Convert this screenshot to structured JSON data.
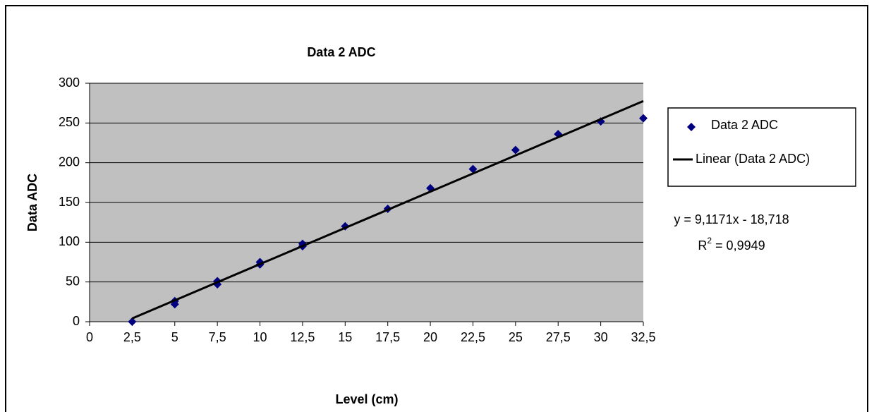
{
  "chart_data": {
    "type": "scatter",
    "title": "Data 2 ADC",
    "x_label": "Level (cm)",
    "y_label": "Data ADC",
    "xlim": [
      0,
      32.5
    ],
    "xticks": [
      0,
      {
        "value": 2.5,
        "label": "2,5"
      },
      5,
      {
        "value": 7.5,
        "label": "7,5"
      },
      10,
      {
        "value": 12.5,
        "label": "12,5"
      },
      15,
      {
        "value": 17.5,
        "label": "17,5"
      },
      20,
      {
        "value": 22.5,
        "label": "22,5"
      },
      25,
      {
        "value": 27.5,
        "label": "27,5"
      },
      30,
      {
        "value": 32.5,
        "label": "32,5"
      }
    ],
    "ylim": [
      0,
      300
    ],
    "yticks": [
      0,
      50,
      100,
      150,
      200,
      250,
      300
    ],
    "grid": true,
    "background": "#c0c0c0",
    "legend": "right",
    "series": [
      {
        "name": "Data 2 ADC",
        "color": "#000080",
        "marker": "diamond",
        "x": [
          2.5,
          5,
          5,
          7.5,
          7.5,
          10,
          10,
          12.5,
          12.5,
          15,
          17.5,
          20,
          22.5,
          25,
          27.5,
          30,
          32.5
        ],
        "values": [
          0,
          22,
          26,
          47,
          51,
          72,
          75,
          95,
          98,
          120,
          142,
          168,
          192,
          216,
          236,
          252,
          256
        ]
      },
      {
        "name": "Linear (Data 2 ADC)",
        "color": "#000000",
        "marker": "line",
        "x": [
          2.5,
          32.5
        ],
        "values": [
          4.07,
          277.6
        ]
      }
    ],
    "equation": "y = 9,1171x - 18,718",
    "r_squared": {
      "base": "R",
      "sup": "2",
      "rest": " = 0,9949"
    }
  }
}
